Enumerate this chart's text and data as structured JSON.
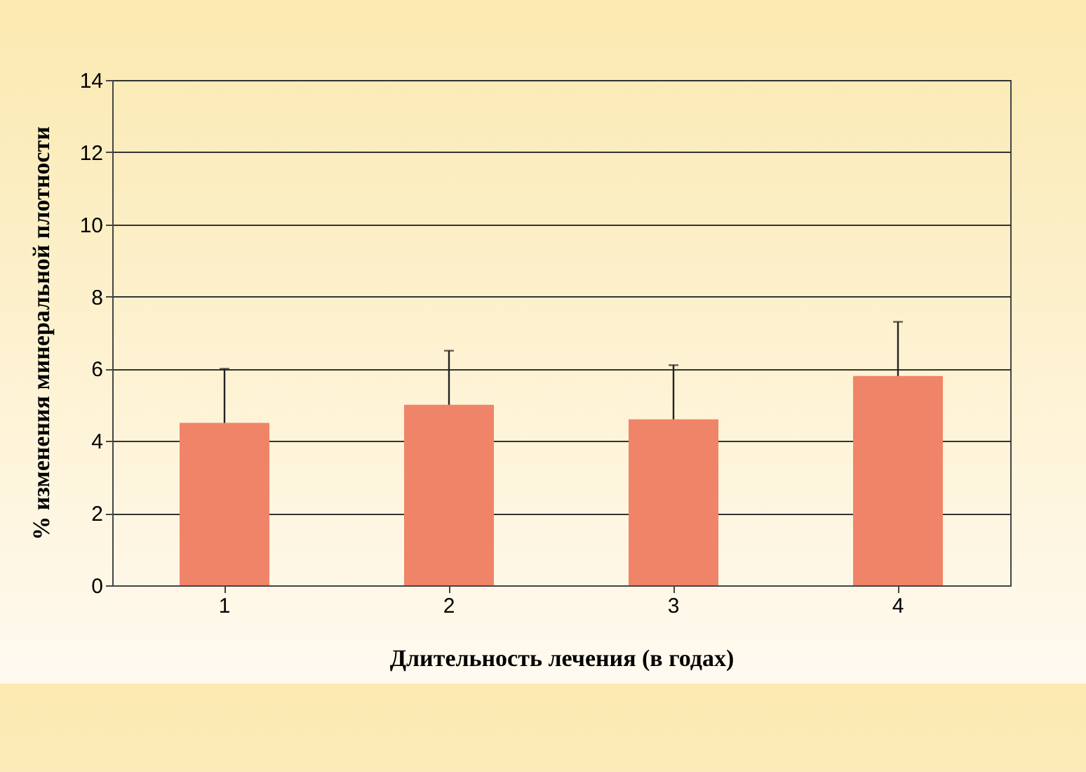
{
  "chart_data": {
    "type": "bar",
    "xlabel": "Длительность лечения (в годах)",
    "ylabel": "% изменения минеральной плотности",
    "categories": [
      "1",
      "2",
      "3",
      "4"
    ],
    "values": [
      4.5,
      5.0,
      4.6,
      5.8
    ],
    "errors": [
      1.5,
      1.5,
      1.5,
      1.5
    ],
    "color": "#f08468",
    "ylim": [
      0,
      14
    ],
    "yticks": [
      0,
      2,
      4,
      6,
      8,
      10,
      12,
      14
    ],
    "grid": "y"
  }
}
